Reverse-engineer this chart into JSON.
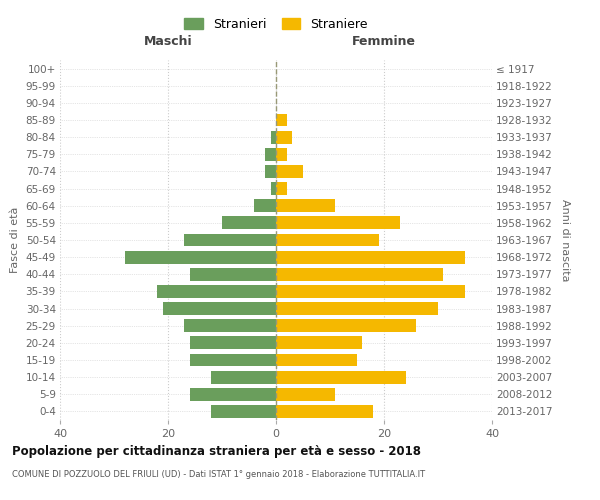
{
  "age_groups": [
    "0-4",
    "5-9",
    "10-14",
    "15-19",
    "20-24",
    "25-29",
    "30-34",
    "35-39",
    "40-44",
    "45-49",
    "50-54",
    "55-59",
    "60-64",
    "65-69",
    "70-74",
    "75-79",
    "80-84",
    "85-89",
    "90-94",
    "95-99",
    "100+"
  ],
  "birth_years": [
    "2013-2017",
    "2008-2012",
    "2003-2007",
    "1998-2002",
    "1993-1997",
    "1988-1992",
    "1983-1987",
    "1978-1982",
    "1973-1977",
    "1968-1972",
    "1963-1967",
    "1958-1962",
    "1953-1957",
    "1948-1952",
    "1943-1947",
    "1938-1942",
    "1933-1937",
    "1928-1932",
    "1923-1927",
    "1918-1922",
    "≤ 1917"
  ],
  "males": [
    12,
    16,
    12,
    16,
    16,
    17,
    21,
    22,
    16,
    28,
    17,
    10,
    4,
    1,
    2,
    2,
    1,
    0,
    0,
    0,
    0
  ],
  "females": [
    18,
    11,
    24,
    15,
    16,
    26,
    30,
    35,
    31,
    35,
    19,
    23,
    11,
    2,
    5,
    2,
    3,
    2,
    0,
    0,
    0
  ],
  "male_color": "#6a9e5c",
  "female_color": "#f5b800",
  "background_color": "#ffffff",
  "grid_color": "#cccccc",
  "title": "Popolazione per cittadinanza straniera per età e sesso - 2018",
  "subtitle": "COMUNE DI POZZUOLO DEL FRIULI (UD) - Dati ISTAT 1° gennaio 2018 - Elaborazione TUTTITALIA.IT",
  "xlabel_left": "Maschi",
  "xlabel_right": "Femmine",
  "ylabel_left": "Fasce di età",
  "ylabel_right": "Anni di nascita",
  "legend_male": "Stranieri",
  "legend_female": "Straniere",
  "xlim": 40
}
